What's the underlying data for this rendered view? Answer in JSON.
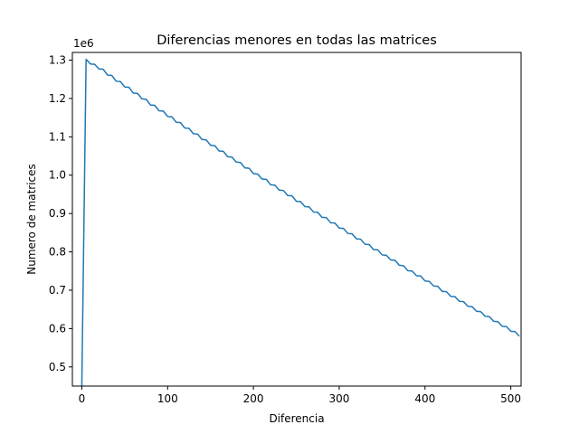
{
  "chart_data": {
    "type": "line",
    "title": "Diferencias menores en todas las matrices",
    "xlabel": "Diferencia",
    "ylabel": "Numero de matrices",
    "y_offset_label": "1e6",
    "xlim": [
      -11,
      512
    ],
    "ylim": [
      0.45,
      1.32
    ],
    "y_scale_factor": 1000000,
    "x_ticks": [
      0,
      100,
      200,
      300,
      400,
      500
    ],
    "x_tick_labels": [
      "0",
      "100",
      "200",
      "300",
      "400",
      "500"
    ],
    "y_ticks": [
      0.5,
      0.6,
      0.7,
      0.8,
      0.9,
      1.0,
      1.1,
      1.2,
      1.3
    ],
    "y_tick_labels": [
      "0.5",
      "0.6",
      "0.7",
      "0.8",
      "0.9",
      "1.0",
      "1.1",
      "1.2",
      "1.3"
    ],
    "grid": false,
    "legend": false,
    "series": [
      {
        "color": "#1f77b4",
        "x": [
          0,
          5,
          10,
          15,
          20,
          25,
          30,
          35,
          40,
          45,
          50,
          55,
          60,
          65,
          70,
          75,
          80,
          85,
          90,
          95,
          100,
          105,
          110,
          115,
          120,
          125,
          130,
          135,
          140,
          145,
          150,
          155,
          160,
          165,
          170,
          175,
          180,
          185,
          190,
          195,
          200,
          205,
          210,
          215,
          220,
          225,
          230,
          235,
          240,
          245,
          250,
          255,
          260,
          265,
          270,
          275,
          280,
          285,
          290,
          295,
          300,
          305,
          310,
          315,
          320,
          325,
          330,
          335,
          340,
          345,
          350,
          355,
          360,
          365,
          370,
          375,
          380,
          385,
          390,
          395,
          400,
          405,
          410,
          415,
          420,
          425,
          430,
          435,
          440,
          445,
          450,
          455,
          460,
          465,
          470,
          475,
          480,
          485,
          490,
          495,
          500,
          505,
          510
        ],
        "y": [
          0.45,
          1.302,
          1.29,
          1.289,
          1.277,
          1.276,
          1.261,
          1.26,
          1.245,
          1.244,
          1.23,
          1.229,
          1.214,
          1.213,
          1.199,
          1.198,
          1.183,
          1.182,
          1.168,
          1.167,
          1.153,
          1.152,
          1.138,
          1.137,
          1.123,
          1.122,
          1.108,
          1.107,
          1.093,
          1.092,
          1.078,
          1.077,
          1.063,
          1.062,
          1.048,
          1.047,
          1.034,
          1.033,
          1.019,
          1.018,
          1.004,
          1.003,
          0.99,
          0.989,
          0.975,
          0.974,
          0.961,
          0.96,
          0.947,
          0.946,
          0.932,
          0.931,
          0.918,
          0.917,
          0.904,
          0.903,
          0.89,
          0.889,
          0.876,
          0.875,
          0.862,
          0.861,
          0.848,
          0.847,
          0.834,
          0.833,
          0.82,
          0.819,
          0.806,
          0.805,
          0.792,
          0.791,
          0.779,
          0.778,
          0.765,
          0.764,
          0.751,
          0.75,
          0.738,
          0.737,
          0.724,
          0.723,
          0.711,
          0.71,
          0.697,
          0.696,
          0.684,
          0.683,
          0.671,
          0.67,
          0.658,
          0.657,
          0.645,
          0.644,
          0.632,
          0.631,
          0.619,
          0.618,
          0.606,
          0.605,
          0.593,
          0.592,
          0.58
        ]
      }
    ]
  }
}
